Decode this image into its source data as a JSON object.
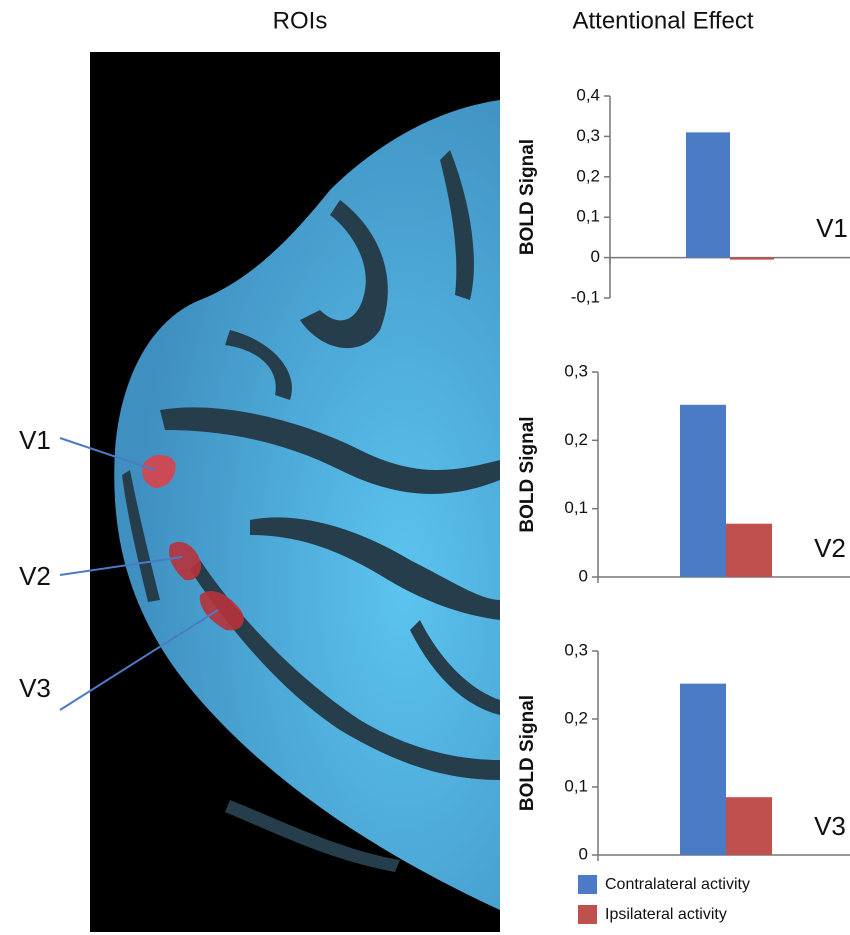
{
  "figure": {
    "left_title": "ROIs",
    "right_title": "Attentional Effect",
    "roi_labels": [
      "V1",
      "V2",
      "V3"
    ]
  },
  "chart_data": [
    {
      "type": "bar",
      "ylabel": "BOLD Signal",
      "annotation": "V1",
      "categories": [
        null
      ],
      "series": [
        {
          "color": "#4a7bc4",
          "values": [
            0.31
          ]
        },
        {
          "color": "#c0504d",
          "values": [
            -0.005
          ]
        }
      ],
      "ylim": [
        -0.1,
        0.4
      ],
      "yticks": [
        {
          "value": -0.1,
          "label": "-0,1"
        },
        0,
        {
          "value": 0.1,
          "label": "0,1"
        },
        {
          "value": 0.2,
          "label": "0,2"
        },
        {
          "value": 0.3,
          "label": "0,3"
        },
        {
          "value": 0.4,
          "label": "0,4"
        }
      ]
    },
    {
      "type": "bar",
      "ylabel": "BOLD Signal",
      "annotation": "V2",
      "categories": [
        null
      ],
      "series": [
        {
          "color": "#4a7bc4",
          "values": [
            0.252
          ]
        },
        {
          "color": "#c0504d",
          "values": [
            0.078
          ]
        }
      ],
      "ylim": [
        0,
        0.3
      ],
      "yticks": [
        0,
        {
          "value": 0.1,
          "label": "0,1"
        },
        {
          "value": 0.2,
          "label": "0,2"
        },
        {
          "value": 0.3,
          "label": "0,3"
        }
      ]
    },
    {
      "type": "bar",
      "ylabel": "BOLD Signal",
      "annotation": "V3",
      "categories": [
        null
      ],
      "series": [
        {
          "name": "Contralateral activity",
          "color": "#4a7bc4",
          "values": [
            0.252
          ]
        },
        {
          "name": "Ipsilateral activity",
          "color": "#c0504d",
          "values": [
            0.085
          ]
        }
      ],
      "ylim": [
        0,
        0.3
      ],
      "yticks": [
        0,
        {
          "value": 0.1,
          "label": "0,1"
        },
        {
          "value": 0.2,
          "label": "0,2"
        },
        {
          "value": 0.3,
          "label": "0,3"
        }
      ]
    }
  ]
}
